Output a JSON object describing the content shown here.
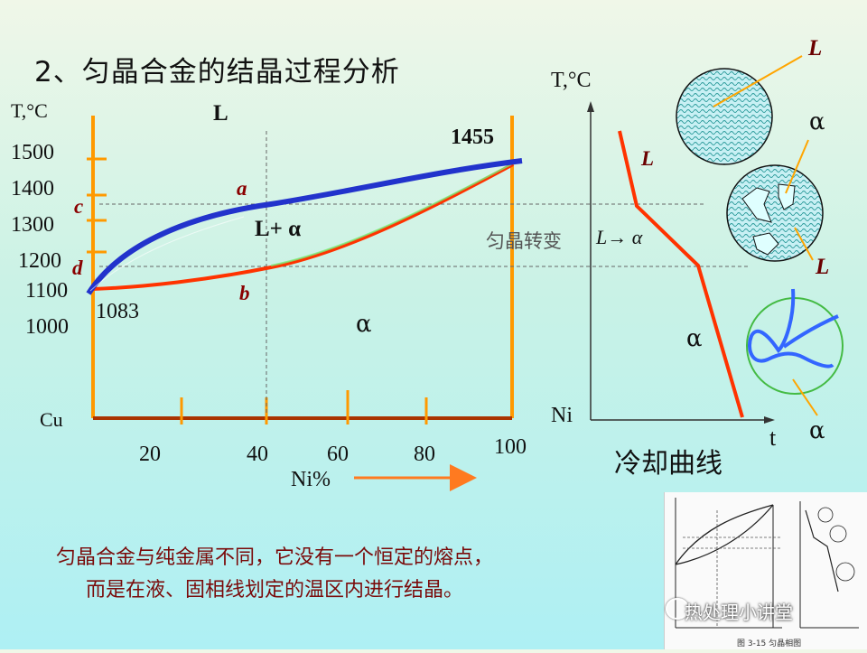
{
  "title": "2、匀晶合金的结晶过程分析",
  "phase_diagram": {
    "y_axis_label": "T,°C",
    "y_ticks": [
      "1500",
      "1400",
      "1300",
      "1200",
      "1100",
      "1000"
    ],
    "x_ticks": [
      "20",
      "40",
      "60",
      "80",
      "100"
    ],
    "x_axis_label": "Ni%",
    "left_element": "Cu",
    "cu_melting_point": "1083",
    "ni_melting_point": "1455",
    "region_liquid": "L",
    "region_two_phase": "L+ α",
    "region_solid": "α",
    "point_a": "a",
    "point_b": "b",
    "point_c": "c",
    "point_d": "d",
    "liquidus_color": "#2233cc",
    "solidus_color": "#ff3300"
  },
  "cooling_curve": {
    "y_axis_label": "T,°C",
    "x_axis_label": "t",
    "bottom_label": "Ni",
    "segment_liquid": "L",
    "segment_solid": "α",
    "transformation": "匀晶转变",
    "transformation_formula": "L→ α",
    "caption": "冷却曲线"
  },
  "microstructures": {
    "label_liquid_1": "L",
    "label_alpha_1": "α",
    "label_liquid_2": "L",
    "label_alpha_2": "α"
  },
  "note_line1": "匀晶合金与纯金属不同，它没有一个恒定的熔点，",
  "note_line2": "而是在液、固相线划定的温区内进行结晶。",
  "watermark": "热处理小讲堂",
  "book_caption": "图 3-15  匀晶相图"
}
